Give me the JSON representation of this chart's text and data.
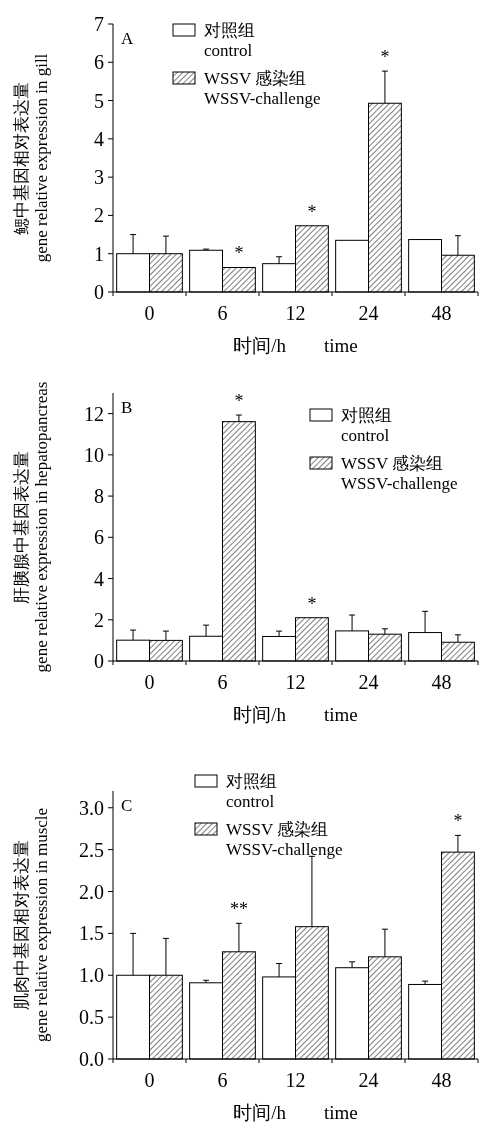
{
  "chart_data": [
    {
      "type": "bar",
      "title": "A",
      "categories": [
        "0",
        "6",
        "12",
        "24",
        "48"
      ],
      "ylabel": "鳃中基因相对表达量\ngene relative expression in gill",
      "xlabel": "时间/h        time",
      "ylim": [
        0,
        7
      ],
      "yticks": [
        0,
        1,
        2,
        3,
        4,
        5,
        6,
        7
      ],
      "legend": "top",
      "series": [
        {
          "name": "对照组\ncontrol",
          "color": "#ffffff",
          "values": [
            1.0,
            1.09,
            0.74,
            1.35,
            1.37
          ],
          "errors": [
            [
              1.0,
              1.5
            ],
            [
              1.09,
              1.12
            ],
            [
              0.74,
              0.92
            ],
            null,
            null
          ]
        },
        {
          "name": "WSSV 感染组\nWSSV-challenge",
          "color": "#000000",
          "values": [
            1.0,
            0.64,
            1.73,
            4.93,
            0.96
          ],
          "errors": [
            [
              1.0,
              1.46
            ],
            null,
            null,
            [
              4.93,
              5.77
            ],
            [
              0.96,
              1.47
            ]
          ]
        }
      ],
      "annotations": [
        {
          "text": "*",
          "x": "6",
          "y": 0.64
        },
        {
          "text": "*",
          "x": "12",
          "y": 1.73
        },
        {
          "text": "*",
          "x": "24",
          "y": 4.93
        }
      ]
    },
    {
      "type": "bar",
      "title": "B",
      "categories": [
        "0",
        "6",
        "12",
        "24",
        "48"
      ],
      "ylabel": "肝胰腺中基因表达量\ngene relative expression in hepatopancreas",
      "xlabel": "时间/h        time",
      "ylim": [
        0,
        13
      ],
      "yticks": [
        0,
        2,
        4,
        6,
        8,
        10,
        12
      ],
      "legend": "top right",
      "series": [
        {
          "name": "对照组\ncontrol",
          "color": "#ffffff",
          "values": [
            1.01,
            1.2,
            1.19,
            1.46,
            1.38
          ],
          "errors": [
            [
              1.01,
              1.5
            ],
            [
              1.2,
              1.74
            ],
            [
              1.19,
              1.45
            ],
            [
              1.46,
              2.23
            ],
            [
              1.38,
              2.41
            ]
          ]
        },
        {
          "name": "WSSV 感染组\nWSSV-challenge",
          "color": "#000000",
          "values": [
            1.0,
            11.61,
            2.1,
            1.3,
            0.91
          ],
          "errors": [
            [
              1.0,
              1.45
            ],
            [
              11.61,
              11.93
            ],
            null,
            [
              1.3,
              1.56
            ],
            [
              0.91,
              1.27
            ]
          ]
        }
      ],
      "annotations": [
        {
          "text": "*",
          "x": "6",
          "y": 11.61
        },
        {
          "text": "*",
          "x": "12",
          "y": 2.1
        }
      ]
    },
    {
      "type": "bar",
      "title": "C",
      "categories": [
        "0",
        "6",
        "12",
        "24",
        "48"
      ],
      "ylabel": "肌肉中基因相对表达量\ngene relative expression in muscle",
      "xlabel": "时间/h        time",
      "ylim": [
        0,
        3.2
      ],
      "yticks": [
        {
          "value": 0,
          "label": "0.0"
        },
        {
          "value": 0.5,
          "label": "0.5"
        },
        {
          "value": 1,
          "label": "1.0"
        },
        {
          "value": 1.5,
          "label": "1.5"
        },
        {
          "value": 2,
          "label": "2.0"
        },
        {
          "value": 2.5,
          "label": "2.5"
        },
        {
          "value": 3,
          "label": "3.0"
        }
      ],
      "legend": "top",
      "series": [
        {
          "name": "对照组\ncontrol",
          "color": "#ffffff",
          "values": [
            1.0,
            0.91,
            0.98,
            1.09,
            0.89
          ],
          "errors": [
            [
              1.0,
              1.5
            ],
            [
              0.91,
              0.94
            ],
            [
              0.98,
              1.14
            ],
            [
              1.09,
              1.16
            ],
            [
              0.89,
              0.93
            ]
          ]
        },
        {
          "name": "WSSV 感染组\nWSSV-challenge",
          "color": "#000000",
          "values": [
            1.0,
            1.28,
            1.58,
            1.22,
            2.47
          ],
          "errors": [
            [
              1.0,
              1.44
            ],
            [
              1.28,
              1.62
            ],
            [
              1.58,
              2.42
            ],
            [
              1.22,
              1.55
            ],
            [
              2.47,
              2.67
            ]
          ]
        }
      ],
      "annotations": [
        {
          "text": "**",
          "x": "6",
          "y": 1.28
        },
        {
          "text": "*",
          "x": "48",
          "y": 2.47
        }
      ]
    }
  ]
}
